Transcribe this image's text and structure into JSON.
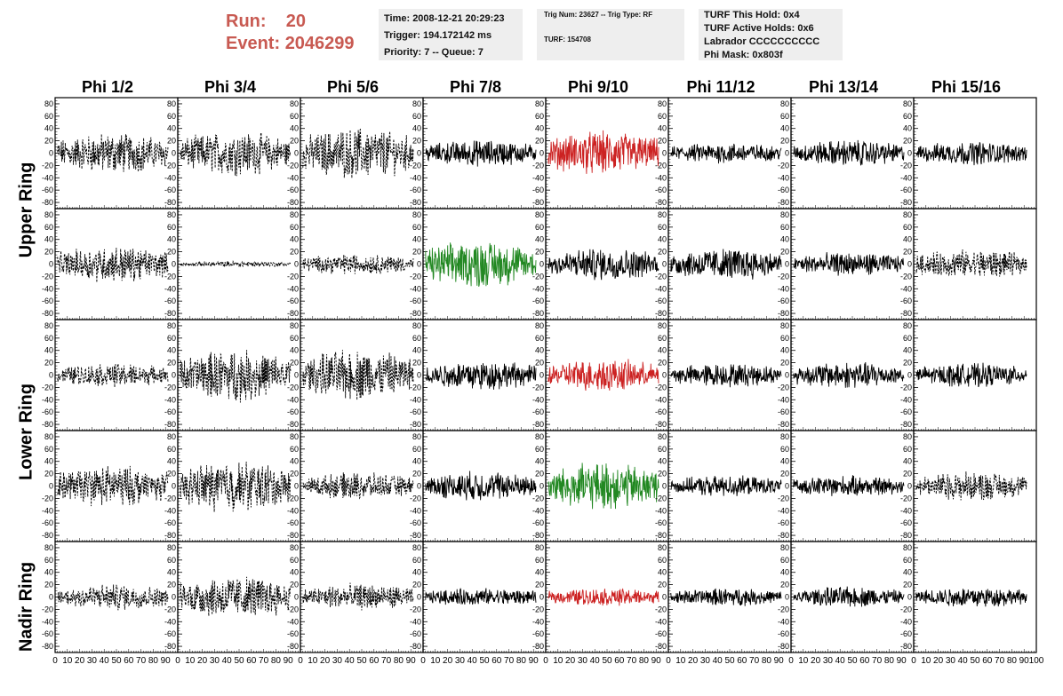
{
  "header": {
    "run_label": "Run:",
    "run_value": "20",
    "event_label": "Event:",
    "event_value": "2046299",
    "time_line": "Time: 2008-12-21 20:29:23",
    "trigger_line": "Trigger: 194.172142 ms",
    "priority_line": "Priority: 7 -- Queue: 7",
    "trig_line": "Trig Num: 23627 -- Trig Type: RF",
    "turf_line": "TURF: 154708",
    "turf_hold_line": "TURF This Hold: 0x4",
    "turf_active_line": "TURF Active Holds: 0x6",
    "labrador_line": "Labrador CCCCCCCCCC",
    "phimask_line": "Phi Mask: 0x803f"
  },
  "columns": [
    "Phi 1/2",
    "Phi 3/4",
    "Phi 5/6",
    "Phi 7/8",
    "Phi 9/10",
    "Phi 11/12",
    "Phi 13/14",
    "Phi 15/16"
  ],
  "rings": [
    "Upper Ring",
    "Lower Ring",
    "Nadir Ring"
  ],
  "colors": {
    "black": "#000000",
    "red": "#cc2222",
    "green": "#228822",
    "title_red": "#c85a52"
  },
  "chart_data": {
    "type": "line",
    "xlim": [
      0,
      100
    ],
    "ylim": [
      -90,
      90
    ],
    "x_ticks": [
      "0",
      "10",
      "20",
      "30",
      "40",
      "50",
      "60",
      "70",
      "80",
      "90",
      "100"
    ],
    "y_ticks": [
      "80",
      "60",
      "40",
      "20",
      "0",
      "-20",
      "-40",
      "-60",
      "-80"
    ],
    "rows": 5,
    "cols": 8,
    "panels": [
      [
        "dashed:28",
        "dashed:30",
        "dashed:35",
        "solid-black:18",
        "solid-red:30",
        "solid-black:14",
        "solid-black:18",
        "solid-black:16"
      ],
      [
        "dashed:25",
        "dashed:4",
        "dashed:14",
        "solid-green:32",
        "solid-black:22",
        "solid-black:22",
        "solid-black:16",
        "dashed:20"
      ],
      [
        "dashed:16",
        "dashed:35",
        "dashed:35",
        "solid-black:20",
        "solid-red:22",
        "solid-black:16",
        "solid-black:18",
        "solid-black:16"
      ],
      [
        "dashed:28",
        "dashed:35",
        "dashed:18",
        "solid-black:20",
        "solid-green:32",
        "solid-black:14",
        "solid-black:14",
        "dashed:20"
      ],
      [
        "dashed:18",
        "dashed:30",
        "dashed:18",
        "solid-black:12",
        "solid-red:12",
        "solid-black:12",
        "solid-black:14",
        "solid-black:14"
      ]
    ]
  }
}
